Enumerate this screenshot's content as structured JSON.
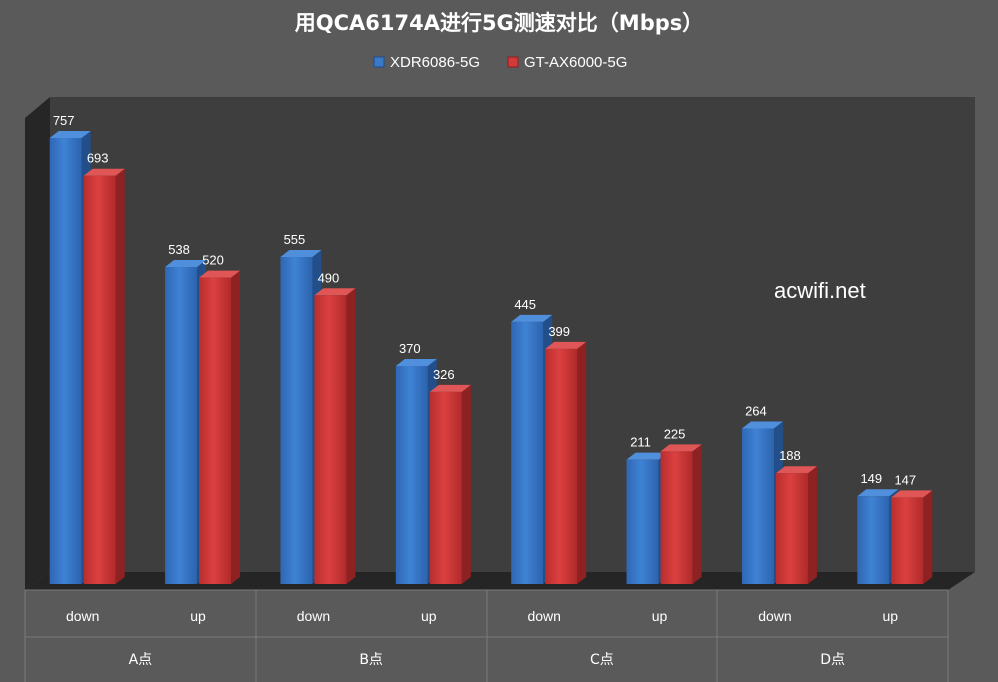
{
  "chart_data": {
    "type": "bar",
    "title": "用QCA6174A进行5G测速对比（Mbps）",
    "groups": [
      "A点",
      "B点",
      "C点",
      "D点"
    ],
    "categories": [
      "down",
      "up",
      "down",
      "up",
      "down",
      "up",
      "down",
      "up"
    ],
    "series": [
      {
        "name": "XDR6086-5G",
        "values": [
          757,
          538,
          555,
          370,
          445,
          211,
          264,
          149
        ],
        "color": "#3a78c8"
      },
      {
        "name": "GT-AX6000-5G",
        "values": [
          693,
          520,
          490,
          326,
          399,
          225,
          188,
          147
        ],
        "color": "#d23a3a"
      }
    ],
    "ylim": [
      0,
      757
    ],
    "legend_position": "top",
    "grid": false,
    "background_color": "#5a5a5a",
    "plot_wall_color": "#3e3e3e"
  },
  "watermark": "acwifi.net"
}
